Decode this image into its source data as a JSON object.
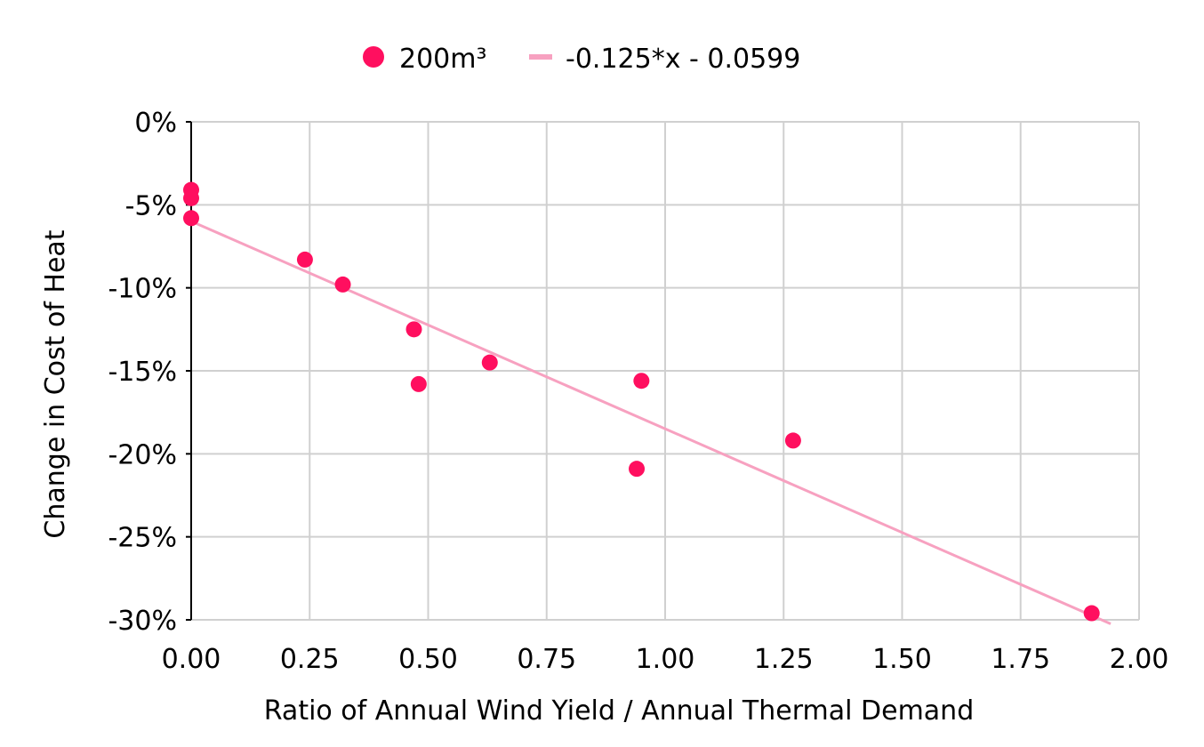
{
  "chart_data": {
    "type": "scatter",
    "xlabel": "Ratio of Annual Wind Yield / Annual Thermal Demand",
    "ylabel": "Change in Cost of Heat",
    "xlim": [
      0,
      2
    ],
    "ylim": [
      -0.3,
      0
    ],
    "x_ticks": [
      0,
      0.25,
      0.5,
      0.75,
      1.0,
      1.25,
      1.5,
      1.75,
      2.0
    ],
    "x_tick_labels": [
      "0.00",
      "0.25",
      "0.50",
      "0.75",
      "1.00",
      "1.25",
      "1.50",
      "1.75",
      "2.00"
    ],
    "y_ticks": [
      0,
      -0.05,
      -0.1,
      -0.15,
      -0.2,
      -0.25,
      -0.3
    ],
    "y_tick_labels": [
      "0%",
      "-5%",
      "-10%",
      "-15%",
      "-20%",
      "-25%",
      "-30%"
    ],
    "grid": true,
    "legend_position": "top-center",
    "series": [
      {
        "name": "200m³",
        "kind": "scatter",
        "color": "#FF0F5F",
        "x": [
          0.0,
          0.0,
          0.0,
          0.24,
          0.32,
          0.47,
          0.48,
          0.63,
          0.94,
          0.95,
          1.27,
          1.9
        ],
        "y": [
          -0.041,
          -0.046,
          -0.058,
          -0.083,
          -0.098,
          -0.125,
          -0.158,
          -0.145,
          -0.209,
          -0.156,
          -0.192,
          -0.296
        ]
      },
      {
        "name": "-0.125*x - 0.0599",
        "kind": "line",
        "color": "#F7A1C0",
        "slope": -0.125,
        "intercept": -0.0599,
        "x_range": [
          0,
          1.94
        ]
      }
    ]
  }
}
